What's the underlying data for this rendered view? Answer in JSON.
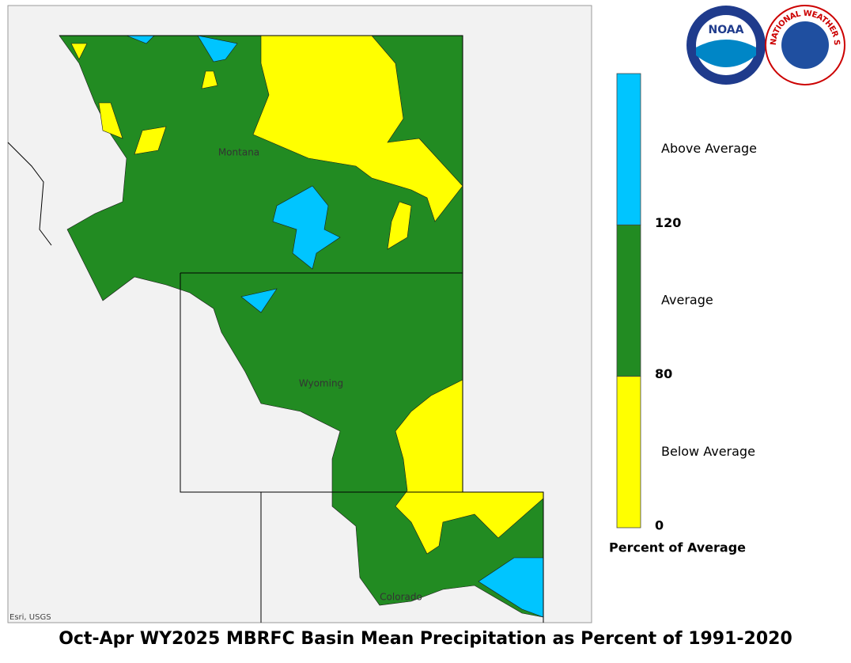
{
  "title": "Oct-Apr WY2025 MBRFC Basin Mean Precipitation as Percent of 1991-2020",
  "attribution": "Esri, USGS",
  "map": {
    "states": [
      "Montana",
      "Wyoming",
      "Colorado"
    ]
  },
  "logos": {
    "noaa": "NOAA",
    "nws": "NATIONAL WEATHER SERVICE"
  },
  "legend": {
    "title": "Percent of Average",
    "classes": [
      {
        "label": "Above Average",
        "color": "#00c5ff"
      },
      {
        "label": "Average",
        "color": "#228b22"
      },
      {
        "label": "Below Average",
        "color": "#ffff00"
      }
    ],
    "breaks": [
      120,
      80,
      0
    ]
  }
}
